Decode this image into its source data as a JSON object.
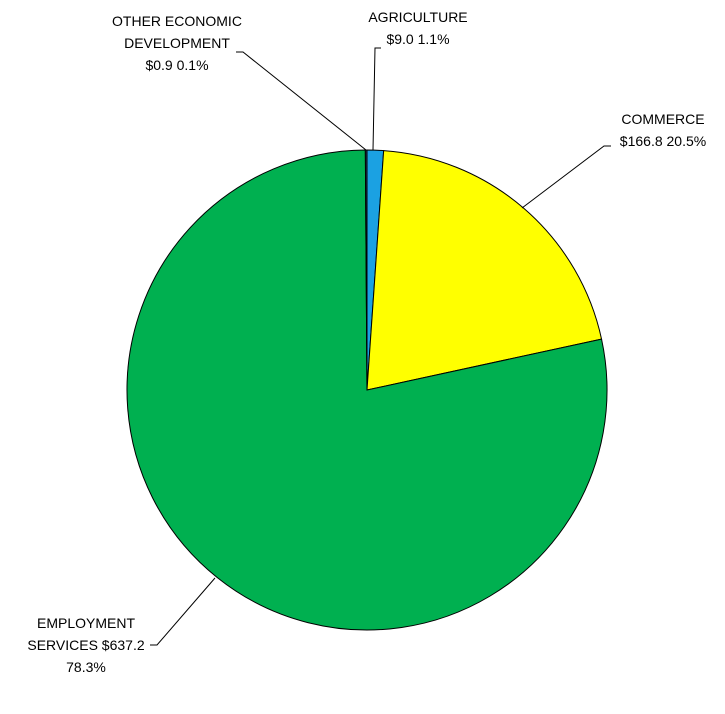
{
  "chart_data": {
    "type": "pie",
    "title": "",
    "slices": [
      {
        "label_lines": [
          "AGRICULTURE",
          "$9.0  1.1%"
        ],
        "value": 9.0,
        "percent": 1.1,
        "color": "#1BA1E2"
      },
      {
        "label_lines": [
          "COMMERCE",
          "$166.8  20.5%"
        ],
        "value": 166.8,
        "percent": 20.5,
        "color": "#FFFF00"
      },
      {
        "label_lines": [
          "EMPLOYMENT",
          "SERVICES  $637.2",
          "78.3%"
        ],
        "value": 637.2,
        "percent": 78.3,
        "color": "#00B050"
      },
      {
        "label_lines": [
          "OTHER ECONOMIC",
          "DEVELOPMENT",
          "$0.9  0.1%"
        ],
        "value": 0.9,
        "percent": 0.1,
        "color": "#1F3864"
      }
    ]
  }
}
